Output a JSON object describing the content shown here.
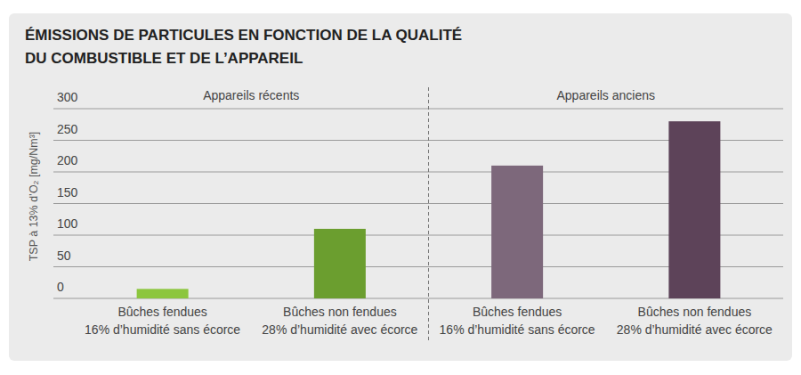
{
  "chart_data": {
    "type": "bar",
    "title": [
      "ÉMISSIONS DE PARTICULES EN FONCTION DE LA QUALITÉ",
      "DU COMBUSTIBLE ET DE L’APPAREIL"
    ],
    "y_label": "TSP à 13% d’O₂ [mg/Nm³]",
    "groups": [
      "Appareils récents",
      "Appareils anciens"
    ],
    "categories": [
      [
        "Bûches fendues",
        "16% d’humidité sans écorce"
      ],
      [
        "Bûches non fendues",
        "28% d’humidité avec écorce"
      ],
      [
        "Bûches fendues",
        "16% d’humidité sans écorce"
      ],
      [
        "Bûches non fendues",
        "28% d’humidité avec écorce"
      ]
    ],
    "values": [
      15,
      110,
      210,
      280
    ],
    "colors": [
      "#8cc63e",
      "#6b9e2f",
      "#7d687b",
      "#5d4359"
    ],
    "ylim": [
      0,
      300
    ],
    "yticks": [
      0,
      50,
      100,
      150,
      200,
      250,
      300
    ],
    "grid": true
  }
}
